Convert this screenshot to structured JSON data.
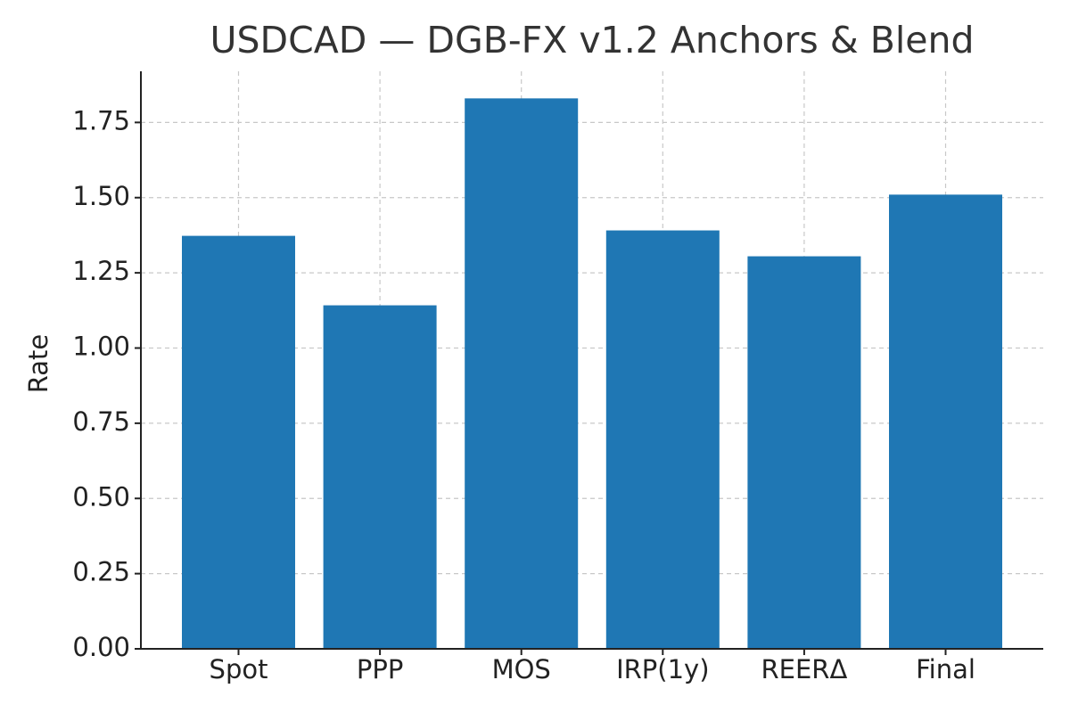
{
  "chart_data": {
    "type": "bar",
    "title": "USDCAD — DGB-FX v1.2 Anchors & Blend",
    "y_label": "Rate",
    "categories": [
      "Spot",
      "PPP",
      "MOS",
      "IRP(1y)",
      "REERΔ",
      "Final"
    ],
    "values": [
      1.373,
      1.142,
      1.83,
      1.391,
      1.305,
      1.51
    ],
    "color": "#1f77b4",
    "ylim": [
      0,
      1.92
    ],
    "yticks": [
      {
        "value": 0,
        "label": "0.00"
      },
      0.25,
      {
        "value": 0.5,
        "label": "0.50"
      },
      0.75,
      {
        "value": 1,
        "label": "1.00"
      },
      1.25,
      {
        "value": 1.5,
        "label": "1.50"
      },
      1.75
    ],
    "grid": true
  }
}
